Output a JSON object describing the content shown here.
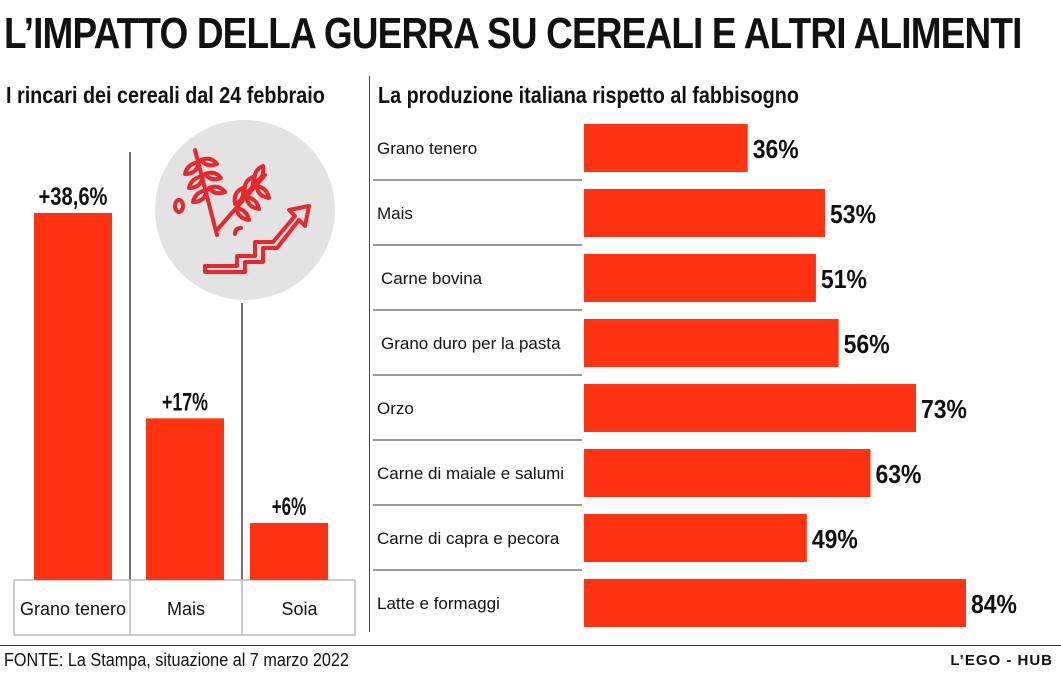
{
  "title": "L’IMPATTO DELLA GUERRA SU CEREALI E ALTRI ALIMENTI",
  "footer": {
    "source": "FONTE: La Stampa, situazione al 7 marzo 2022",
    "brand": "L’EGO - HUB"
  },
  "icon": "wheat-price-rise-icon",
  "colors": {
    "bar": "#ff3311",
    "icon": "#e8282c",
    "circle": "#e3e3e3"
  },
  "chart_data": [
    {
      "type": "bar",
      "title": "I rincari dei cereali dal 24 febbraio",
      "categories": [
        "Grano tenero",
        "Mais",
        "Soia"
      ],
      "values": [
        38.6,
        17,
        6
      ],
      "value_labels": [
        "+38,6%",
        "+17%",
        "+6%"
      ],
      "unit": "%",
      "xlabel": "",
      "ylabel": ""
    },
    {
      "type": "bar",
      "orientation": "horizontal",
      "title": "La produzione italiana rispetto al fabbisogno",
      "categories": [
        "Grano tenero",
        "Mais",
        "Carne bovina",
        "Grano duro per la pasta",
        "Orzo",
        "Carne di maiale e salumi",
        "Carne di capra e pecora",
        "Latte e formaggi"
      ],
      "values": [
        36,
        53,
        51,
        56,
        73,
        63,
        49,
        84
      ],
      "value_labels": [
        "36%",
        "53%",
        "51%",
        "56%",
        "73%",
        "63%",
        "49%",
        "84%"
      ],
      "unit": "%",
      "xlabel": "",
      "ylabel": ""
    }
  ]
}
